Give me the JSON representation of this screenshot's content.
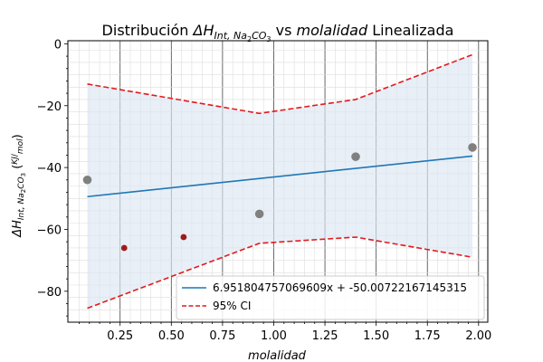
{
  "chart_data": {
    "type": "scatter",
    "title_parts": [
      "Distribución ",
      "ΔH",
      "Int, Na",
      "2",
      "CO",
      "3",
      " vs ",
      "molalidad",
      " Linealizada"
    ],
    "xlabel": "molalidad",
    "ylabel_parts": [
      "ΔH",
      "Int, Na",
      "2",
      "CO",
      "3",
      " (",
      "KJ",
      "mol",
      ")"
    ],
    "xlim": [
      -0.005,
      2.045
    ],
    "ylim": [
      -90,
      1
    ],
    "x_ticks": [
      0.25,
      0.5,
      0.75,
      1.0,
      1.25,
      1.5,
      1.75,
      2.0
    ],
    "x_tick_labels": [
      "0.25",
      "0.50",
      "0.75",
      "1.00",
      "1.25",
      "1.50",
      "1.75",
      "2.00"
    ],
    "y_ticks": [
      -80,
      -60,
      -40,
      -20,
      0
    ],
    "y_tick_labels": [
      "−80",
      "−60",
      "−40",
      "−20",
      "0"
    ],
    "grid": true,
    "points": [
      {
        "x": 0.09,
        "y": -44.0,
        "color": "#808080"
      },
      {
        "x": 0.93,
        "y": -55.0,
        "color": "#808080"
      },
      {
        "x": 1.4,
        "y": -36.5,
        "color": "#808080"
      },
      {
        "x": 1.97,
        "y": -33.5,
        "color": "#808080"
      }
    ],
    "outliers": [
      {
        "x": 0.27,
        "y": -66.0,
        "color": "#a01a1a"
      },
      {
        "x": 0.56,
        "y": -62.5,
        "color": "#a01a1a"
      }
    ],
    "fit": {
      "name": "6.951804757069609x + -50.00722167145315",
      "x": [
        0.09,
        1.97
      ],
      "y": [
        -49.4,
        -36.3
      ],
      "color": "#1f77b4"
    },
    "ci": {
      "name": "95% CI",
      "x": [
        0.09,
        0.93,
        1.4,
        1.97
      ],
      "upper": [
        -13.0,
        -22.5,
        -18.0,
        -3.5
      ],
      "lower": [
        -85.5,
        -64.5,
        -62.5,
        -69.0
      ],
      "color": "#e31a1c",
      "fill": "#dbe7f3"
    },
    "legend_position": "lower-right"
  }
}
